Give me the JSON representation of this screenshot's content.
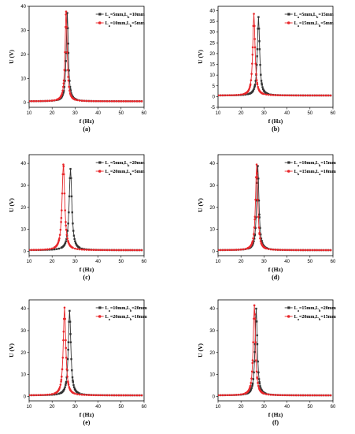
{
  "chart_data": [
    {
      "panel": "(a)",
      "type": "line",
      "xlabel": "f (Hz)",
      "ylabel": "U (V)",
      "xlim": [
        10,
        60
      ],
      "ylim": [
        -2,
        40
      ],
      "xticks": [
        10,
        20,
        30,
        40,
        50,
        60
      ],
      "yticks": [
        0,
        10,
        20,
        30,
        40
      ],
      "legend_position": "top-right",
      "series": [
        {
          "name": "La=5mm,Lb=10mm",
          "color": "#333333",
          "marker": "square",
          "peak_x": 26.6,
          "peak_y": 37.2,
          "half_width": 0.55
        },
        {
          "name": "La=10mm,Lb=5mm",
          "color": "#e8262a",
          "marker": "circle",
          "peak_x": 26.1,
          "peak_y": 37.8,
          "half_width": 0.55
        }
      ]
    },
    {
      "panel": "(b)",
      "type": "line",
      "xlabel": "f (Hz)",
      "ylabel": "U (V)",
      "xlim": [
        10,
        60
      ],
      "ylim": [
        -5,
        42
      ],
      "xticks": [
        10,
        20,
        30,
        40,
        50,
        60
      ],
      "yticks": [
        -5,
        0,
        5,
        10,
        15,
        20,
        25,
        30,
        35,
        40
      ],
      "legend_position": "top-right",
      "series": [
        {
          "name": "La=5mm,Lb=15mm",
          "color": "#333333",
          "marker": "square",
          "peak_x": 27.6,
          "peak_y": 37.0,
          "half_width": 0.6
        },
        {
          "name": "La=15mm,Lb=5mm",
          "color": "#e8262a",
          "marker": "circle",
          "peak_x": 25.6,
          "peak_y": 38.5,
          "half_width": 0.6
        }
      ]
    },
    {
      "panel": "(c)",
      "type": "line",
      "xlabel": "f (Hz)",
      "ylabel": "U (V)",
      "xlim": [
        10,
        60
      ],
      "ylim": [
        -2,
        44
      ],
      "xticks": [
        10,
        20,
        30,
        40,
        50,
        60
      ],
      "yticks": [
        0,
        10,
        20,
        30,
        40
      ],
      "legend_position": "top-right",
      "series": [
        {
          "name": "La=5mm,Lb=20mm",
          "color": "#333333",
          "marker": "square",
          "peak_x": 28.0,
          "peak_y": 37.5,
          "half_width": 0.7
        },
        {
          "name": "La=20mm,Lb=5mm",
          "color": "#e8262a",
          "marker": "circle",
          "peak_x": 24.9,
          "peak_y": 39.5,
          "half_width": 0.7
        }
      ]
    },
    {
      "panel": "(d)",
      "type": "line",
      "xlabel": "f (Hz)",
      "ylabel": "U (V)",
      "xlim": [
        10,
        60
      ],
      "ylim": [
        -2,
        44
      ],
      "xticks": [
        10,
        20,
        30,
        40,
        50,
        60
      ],
      "yticks": [
        0,
        10,
        20,
        30,
        40
      ],
      "legend_position": "top-right",
      "series": [
        {
          "name": "La=10mm,Lb=15mm",
          "color": "#333333",
          "marker": "square",
          "peak_x": 27.3,
          "peak_y": 38.8,
          "half_width": 0.6
        },
        {
          "name": "Lb=15mm,La=10mm",
          "color": "#e8262a",
          "marker": "circle",
          "peak_x": 26.8,
          "peak_y": 39.5,
          "half_width": 0.6
        }
      ]
    },
    {
      "panel": "(e)",
      "type": "line",
      "xlabel": "f (Hz)",
      "ylabel": "U (V)",
      "xlim": [
        10,
        60
      ],
      "ylim": [
        -2,
        44
      ],
      "xticks": [
        10,
        20,
        30,
        40,
        50,
        60
      ],
      "yticks": [
        0,
        10,
        20,
        30,
        40
      ],
      "legend_position": "top-right",
      "series": [
        {
          "name": "La=10mm,Lb=20mm",
          "color": "#333333",
          "marker": "square",
          "peak_x": 27.6,
          "peak_y": 39.0,
          "half_width": 0.65
        },
        {
          "name": "La=20mm,Lb=10mm",
          "color": "#e8262a",
          "marker": "circle",
          "peak_x": 25.4,
          "peak_y": 40.5,
          "half_width": 0.65
        }
      ]
    },
    {
      "panel": "(f)",
      "type": "line",
      "xlabel": "f (Hz)",
      "ylabel": "U (V)",
      "xlim": [
        10,
        60
      ],
      "ylim": [
        -2,
        44
      ],
      "xticks": [
        10,
        20,
        30,
        40,
        50,
        60
      ],
      "yticks": [
        0,
        10,
        20,
        30,
        40
      ],
      "legend_position": "top-right",
      "series": [
        {
          "name": "La=15mm,Lb=20mm",
          "color": "#333333",
          "marker": "square",
          "peak_x": 26.6,
          "peak_y": 40.0,
          "half_width": 0.6
        },
        {
          "name": "La=20mm,Lb=15mm",
          "color": "#e8262a",
          "marker": "circle",
          "peak_x": 25.8,
          "peak_y": 41.5,
          "half_width": 0.6
        }
      ]
    }
  ]
}
